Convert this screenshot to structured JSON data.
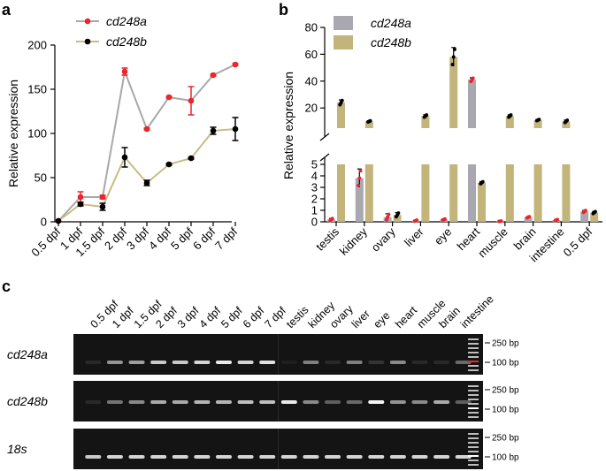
{
  "panels": {
    "a": "a",
    "b": "b",
    "c": "c"
  },
  "chart_data": [
    {
      "type": "line",
      "panel": "a",
      "ylabel": "Relative expression",
      "xlabel": "",
      "categories": [
        "0.5 dpf",
        "1 dpf",
        "1.5 dpf",
        "2 dpf",
        "3 dpf",
        "4 dpf",
        "5 dpf",
        "6 dpf",
        "7 dpf"
      ],
      "ylim": [
        0,
        200
      ],
      "yticks": [
        0,
        50,
        100,
        150,
        200
      ],
      "legend_position": "top-left",
      "series": [
        {
          "name": "cd248a",
          "color": "#e8262b",
          "line_color": "#a8a8a8",
          "values": [
            1,
            28,
            28,
            170,
            105,
            141,
            137,
            166,
            178
          ],
          "errors": [
            0.5,
            6,
            2,
            4,
            1,
            1,
            16,
            1,
            1
          ]
        },
        {
          "name": "cd248b",
          "color": "#000000",
          "line_color": "#c9bc85",
          "values": [
            1,
            20,
            17,
            73,
            44,
            65,
            72,
            103,
            105
          ],
          "errors": [
            0.5,
            2,
            4,
            11,
            3,
            1,
            1,
            4,
            13
          ]
        }
      ]
    },
    {
      "type": "bar",
      "panel": "b",
      "ylabel": "Relative expression",
      "categories": [
        "testis",
        "kidney",
        "ovary",
        "liver",
        "eye",
        "heart",
        "muscle",
        "brain",
        "intestine",
        "0.5 dpf"
      ],
      "y_break": {
        "lower": [
          0,
          5
        ],
        "upper": [
          5,
          80
        ]
      },
      "yticks_lower": [
        0,
        1,
        2,
        3,
        4,
        5
      ],
      "yticks_upper": [
        20,
        40,
        60,
        80
      ],
      "legend_position": "top-left",
      "series": [
        {
          "name": "cd248a",
          "color": "#a9a8b0",
          "dot_color": "#e8262b",
          "values": [
            0.2,
            3.8,
            0.4,
            0.1,
            0.2,
            41,
            0.05,
            0.4,
            0.15,
            0.9
          ],
          "errors": [
            0.1,
            0.8,
            0.3,
            0.05,
            0.05,
            1.5,
            0.02,
            0.05,
            0.05,
            0.1
          ]
        },
        {
          "name": "cd248b",
          "color": "#c2b47b",
          "dot_color": "#000000",
          "values": [
            24,
            10,
            0.6,
            14,
            58,
            3.4,
            14,
            11,
            10,
            0.8
          ],
          "errors": [
            2,
            0.5,
            0.2,
            1,
            7,
            0.1,
            1,
            0.5,
            1,
            0.1
          ]
        }
      ]
    }
  ],
  "gel": {
    "lanes": [
      "0.5 dpf",
      "1 dpf",
      "1.5 dpf",
      "2 dpf",
      "3 dpf",
      "4 dpf",
      "5 dpf",
      "6 dpf",
      "7 dpf",
      "testis",
      "kidney",
      "ovary",
      "liver",
      "eye",
      "heart",
      "muscle",
      "brain",
      "intestine"
    ],
    "rows": [
      {
        "label": "cd248a",
        "markers": [
          "250 bp",
          "100 bp"
        ],
        "intensities": [
          0.05,
          0.55,
          0.6,
          0.8,
          0.8,
          0.85,
          0.95,
          0.85,
          0.9,
          0.0,
          0.45,
          0.05,
          0.45,
          0.1,
          0.5,
          0.05,
          0.05,
          0.35
        ]
      },
      {
        "label": "cd248b",
        "markers": [
          "250 bp",
          "100 bp"
        ],
        "intensities": [
          0.05,
          0.4,
          0.5,
          0.65,
          0.65,
          0.7,
          0.7,
          0.75,
          0.75,
          0.95,
          0.5,
          0.3,
          0.35,
          1.0,
          0.55,
          0.5,
          0.65,
          0.3
        ]
      },
      {
        "label": "18s",
        "markers": [
          "250 bp",
          "100 bp"
        ],
        "intensities": [
          0.8,
          0.85,
          0.85,
          0.85,
          0.85,
          0.85,
          0.85,
          0.85,
          0.85,
          0.85,
          0.85,
          0.85,
          0.85,
          0.85,
          0.85,
          0.85,
          0.85,
          0.85
        ]
      }
    ]
  }
}
